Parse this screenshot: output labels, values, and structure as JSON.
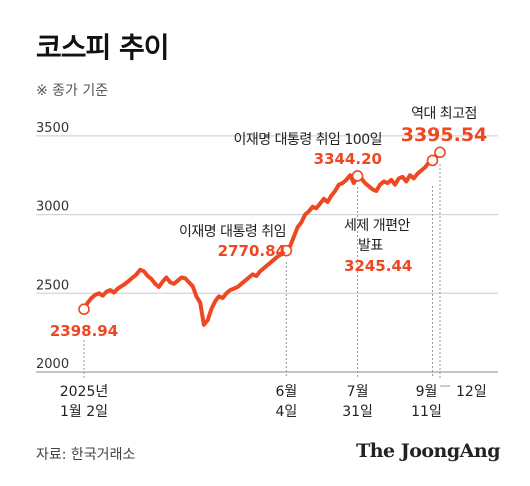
{
  "title": "코스피 추이",
  "subtitle": "※ 종가 기준",
  "source": "자료: 한국거래소",
  "brand": "The JoongAng",
  "colors": {
    "line": "#ee4722",
    "grid": "#cccccc",
    "axis": "#888888",
    "label_value": "#ee4722"
  },
  "chart_data": {
    "type": "line",
    "title": "코스피 추이",
    "ylim": [
      2000,
      3550
    ],
    "yticks": [
      2000,
      2500,
      3000,
      3500
    ],
    "ytick_labels": [
      "2000",
      "2500",
      "3000",
      "3500"
    ],
    "grid": true,
    "series": [
      {
        "values": [
          2398.94,
          2440,
          2470,
          2490,
          2500,
          2485,
          2510,
          2520,
          2505,
          2530,
          2545,
          2560,
          2580,
          2600,
          2620,
          2650,
          2640,
          2610,
          2590,
          2560,
          2540,
          2575,
          2600,
          2570,
          2560,
          2580,
          2600,
          2595,
          2570,
          2545,
          2480,
          2440,
          2300,
          2330,
          2400,
          2450,
          2480,
          2470,
          2500,
          2520,
          2530,
          2540,
          2560,
          2580,
          2600,
          2620,
          2610,
          2640,
          2660,
          2680,
          2700,
          2720,
          2740,
          2750,
          2770.84,
          2800,
          2860,
          2920,
          2950,
          3000,
          3020,
          3050,
          3040,
          3070,
          3100,
          3080,
          3120,
          3150,
          3190,
          3200,
          3220,
          3250,
          3200,
          3245.44,
          3230,
          3200,
          3180,
          3160,
          3150,
          3190,
          3210,
          3200,
          3220,
          3190,
          3230,
          3240,
          3210,
          3250,
          3230,
          3260,
          3280,
          3300,
          3330,
          3344.2,
          3380,
          3395.54
        ]
      }
    ],
    "x_range": [
      "2025-01-02",
      "2025-09-19"
    ],
    "annotations": [
      {
        "label": "",
        "value": "2398.94",
        "date": "2025-01-02"
      },
      {
        "label": "이재명 대통령 취임",
        "value": "2770.84",
        "date": "2025-06-04"
      },
      {
        "label": "세제 개편안 발표",
        "value": "3245.44",
        "date": "2025-07-31"
      },
      {
        "label": "이재명 대통령 취임 100일",
        "value": "3344.20",
        "date": "2025-09-11"
      },
      {
        "label": "역대 최고점",
        "value": "3395.54",
        "date": "2025-09-12"
      }
    ],
    "x_labels": [
      {
        "line1": "2025년",
        "line2": "1월 2일"
      },
      {
        "line1": "6월",
        "line2": "4일"
      },
      {
        "line1": "7월",
        "line2": "31일"
      },
      {
        "line1": "9월",
        "line2": "11일"
      },
      {
        "line1": "12일",
        "line2": ""
      }
    ]
  }
}
